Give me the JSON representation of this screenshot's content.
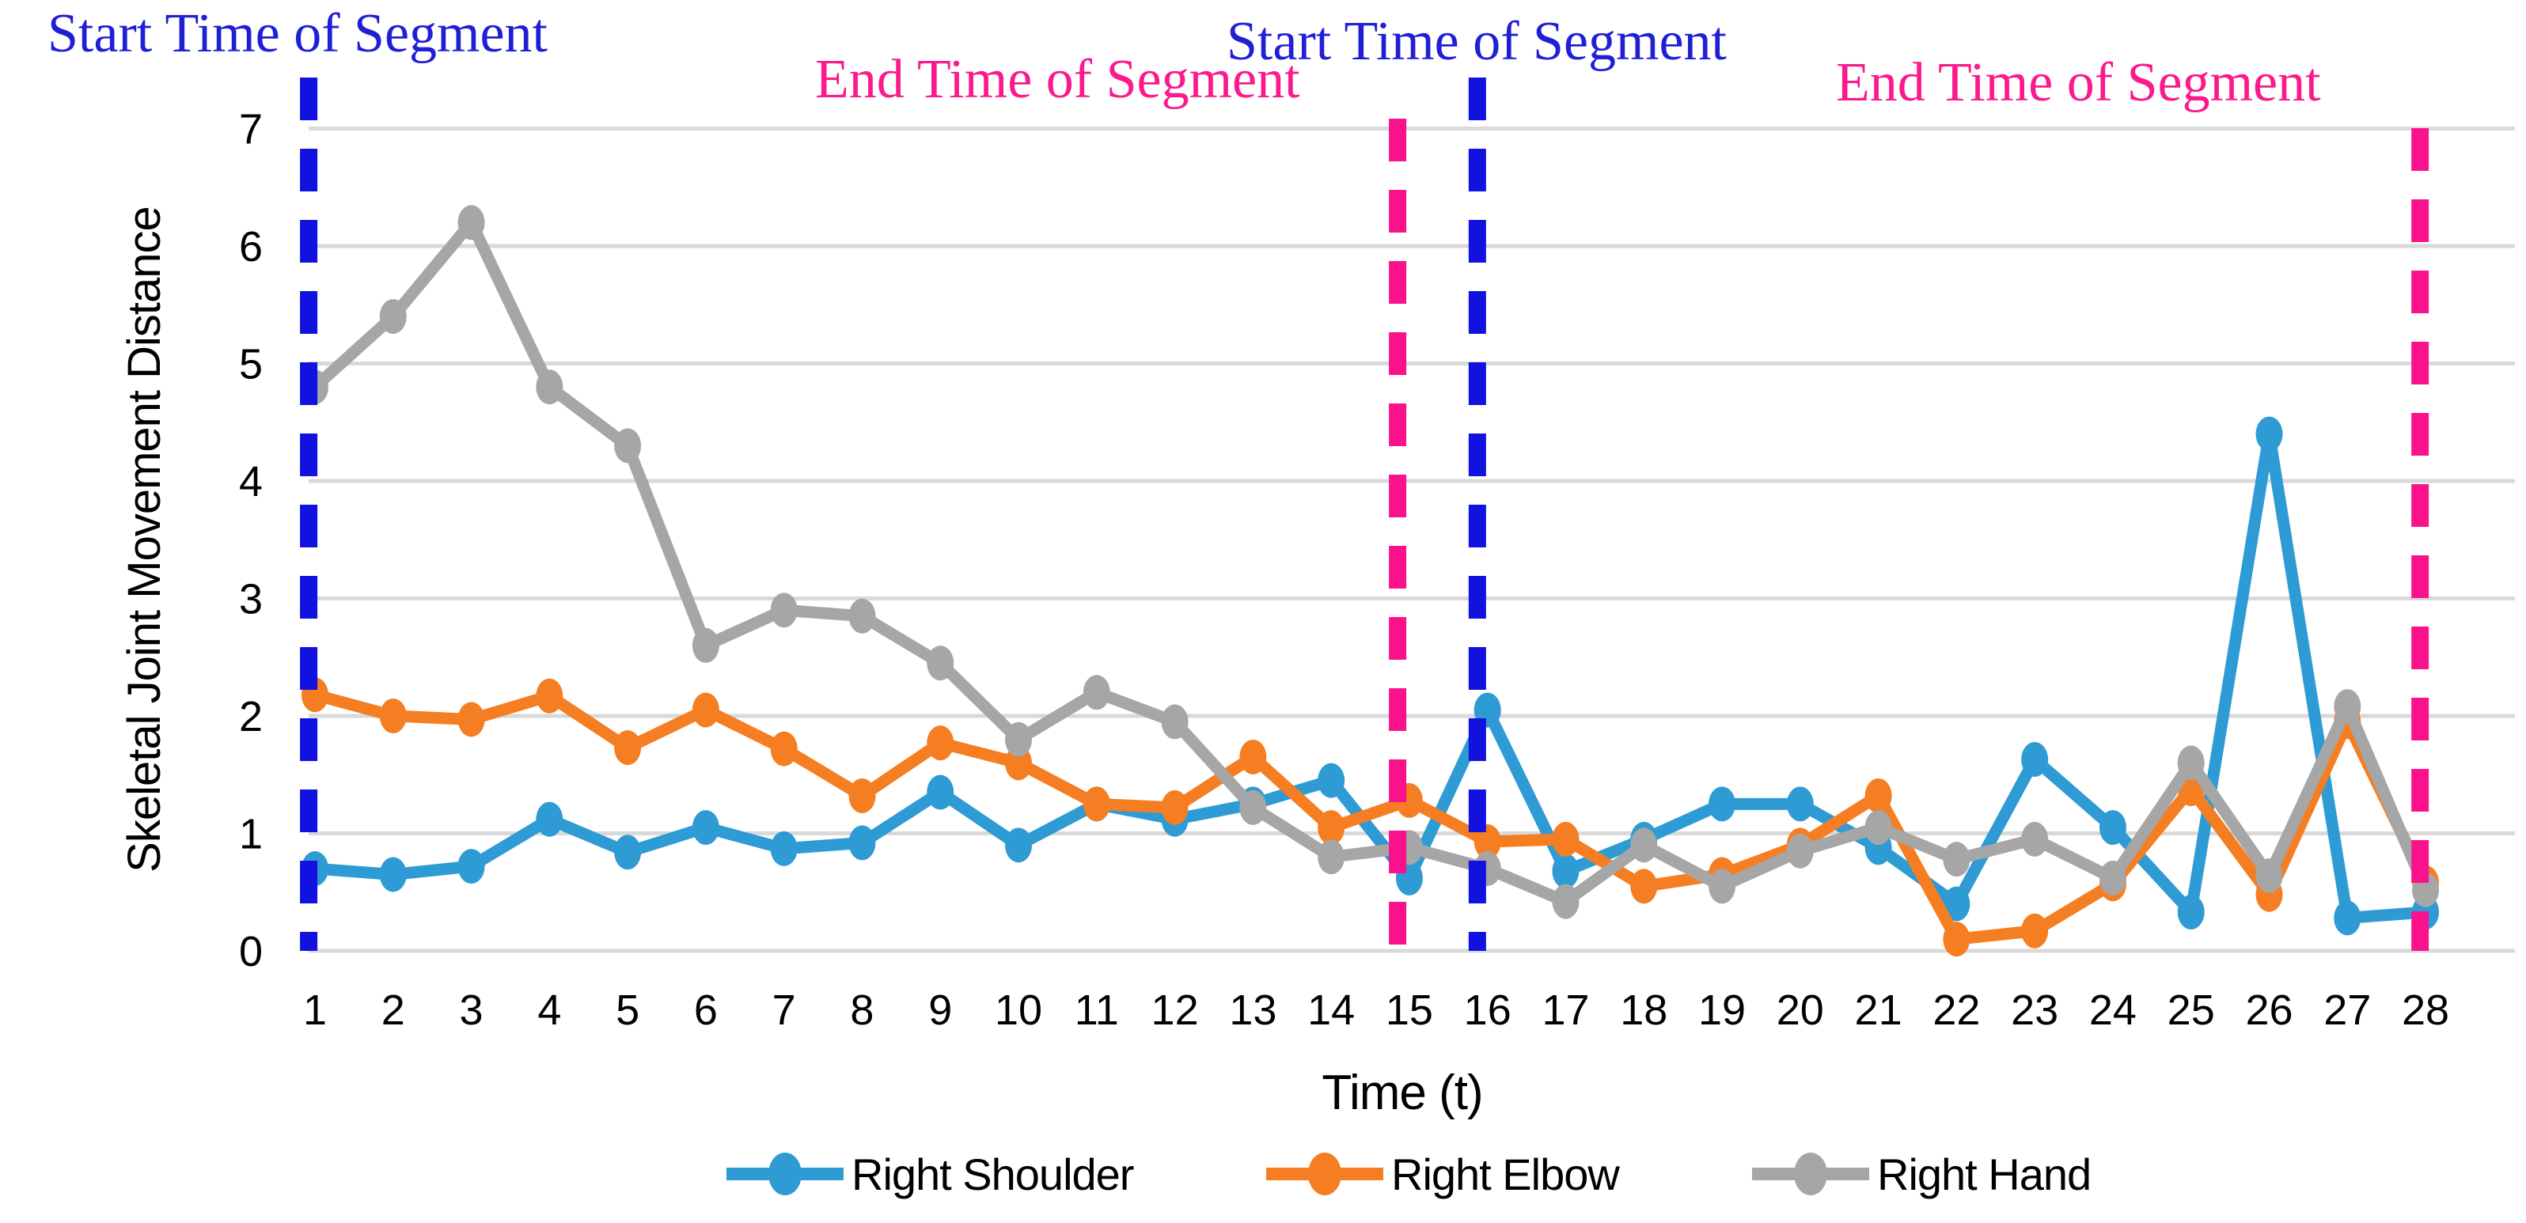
{
  "chart_data": {
    "type": "line",
    "title": "",
    "xlabel": "Time (t)",
    "ylabel": "Skeletal Joint Movement Distance",
    "x": [
      1,
      2,
      3,
      4,
      5,
      6,
      7,
      8,
      9,
      10,
      11,
      12,
      13,
      14,
      15,
      16,
      17,
      18,
      19,
      20,
      21,
      22,
      23,
      24,
      25,
      26,
      27,
      28
    ],
    "yticks": [
      0,
      1,
      2,
      3,
      4,
      5,
      6,
      7
    ],
    "ylim": [
      0,
      7
    ],
    "grid": true,
    "grid_color": "#D9D9D9",
    "tick_color": "#000000",
    "legend_position": "bottom",
    "series": [
      {
        "name": "Right Shoulder",
        "color": "#2E9BD5",
        "values": [
          0.7,
          0.65,
          0.72,
          1.12,
          0.84,
          1.05,
          0.87,
          0.92,
          1.35,
          0.9,
          1.25,
          1.12,
          1.25,
          1.45,
          0.62,
          2.05,
          0.68,
          0.95,
          1.25,
          1.25,
          0.88,
          0.4,
          1.63,
          1.05,
          0.33,
          4.4,
          0.28,
          0.33
        ]
      },
      {
        "name": "Right Elbow",
        "color": "#F57E22",
        "values": [
          2.18,
          2.0,
          1.97,
          2.17,
          1.73,
          2.05,
          1.72,
          1.32,
          1.77,
          1.6,
          1.25,
          1.22,
          1.65,
          1.05,
          1.28,
          0.93,
          0.95,
          0.55,
          0.65,
          0.9,
          1.32,
          0.1,
          0.17,
          0.57,
          1.38,
          0.48,
          1.95,
          0.58
        ]
      },
      {
        "name": "Right Hand",
        "color": "#A6A6A6",
        "values": [
          4.8,
          5.4,
          6.2,
          4.8,
          4.3,
          2.6,
          2.9,
          2.85,
          2.45,
          1.8,
          2.2,
          1.95,
          1.22,
          0.8,
          0.88,
          0.7,
          0.42,
          0.9,
          0.55,
          0.85,
          1.05,
          0.78,
          0.95,
          0.62,
          1.6,
          0.64,
          2.08,
          0.52
        ]
      }
    ],
    "annotations": {
      "vlines": [
        {
          "label": "Start Time of Segment",
          "t": 0.92,
          "line_color": "#1111E0",
          "label_color": "#1F1FD6"
        },
        {
          "label": "End Time of Segment",
          "t": 14.85,
          "line_color": "#FA128C",
          "label_color": "#FA1A8C"
        },
        {
          "label": "Start Time of Segment",
          "t": 15.87,
          "line_color": "#1111E0",
          "label_color": "#1F1FD6"
        },
        {
          "label": "End Time of Segment",
          "t": 27.93,
          "line_color": "#FA128C",
          "label_color": "#FA1A8C"
        }
      ]
    }
  }
}
